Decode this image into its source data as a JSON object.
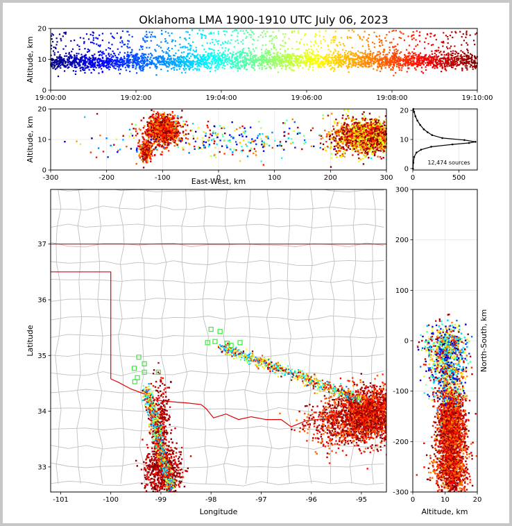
{
  "title": "Oklahoma LMA 1900-1910 UTC July 06, 2023",
  "chart_data": [
    {
      "id": "time_altitude",
      "type": "scatter",
      "xlabel": "",
      "ylabel": "Altitude, km",
      "x_ticks": [
        "19:00:00",
        "19:02:00",
        "19:04:00",
        "19:06:00",
        "19:08:00",
        "19:10:00"
      ],
      "x_range_minutes": [
        0,
        10
      ],
      "ylim": [
        0,
        20
      ],
      "y_ticks": [
        0,
        10,
        20
      ],
      "colormap": "jet, by time",
      "altitude_profile_km": [
        {
          "minute": 0.0,
          "center": 9.0,
          "spread": 2.2
        },
        {
          "minute": 1.0,
          "center": 9.0,
          "spread": 2.4
        },
        {
          "minute": 2.0,
          "center": 9.2,
          "spread": 2.6
        },
        {
          "minute": 4.0,
          "center": 9.6,
          "spread": 2.6
        },
        {
          "minute": 6.0,
          "center": 9.6,
          "spread": 2.4
        },
        {
          "minute": 8.0,
          "center": 9.4,
          "spread": 2.3
        },
        {
          "minute": 10.0,
          "center": 9.2,
          "spread": 2.3
        }
      ],
      "sources_per_minute_relative": [
        1.0,
        1.05,
        1.0,
        1.0,
        1.0,
        1.0,
        1.0,
        1.05,
        1.1,
        1.2
      ]
    },
    {
      "id": "east_west_altitude",
      "type": "scatter",
      "xlabel": "East-West, km",
      "ylabel": "Altitude, km",
      "xlim": [
        -300,
        300
      ],
      "x_ticks": [
        -300,
        -200,
        -100,
        0,
        100,
        200,
        300
      ],
      "ylim": [
        0,
        20
      ],
      "y_ticks": [
        0,
        10,
        20
      ],
      "clusters": [
        {
          "x": -100,
          "x_spread": 14,
          "z": 13,
          "z_spread": 4,
          "weight": 0.3
        },
        {
          "x": -130,
          "x_spread": 6,
          "z": 6,
          "z_spread": 3,
          "weight": 0.06
        },
        {
          "x": 275,
          "x_spread": 20,
          "z": 11,
          "z_spread": 4,
          "weight": 0.4
        },
        {
          "x": 235,
          "x_spread": 22,
          "z": 11,
          "z_spread": 5,
          "weight": 0.14
        },
        {
          "x": 0,
          "x_spread": 120,
          "z": 10,
          "z_spread": 5,
          "weight": 0.1
        }
      ]
    },
    {
      "id": "altitude_histogram",
      "type": "line",
      "xlim": [
        0,
        700
      ],
      "x_ticks": [
        0,
        500
      ],
      "ylim": [
        -0.5,
        20.5
      ],
      "y_ticks": [
        0,
        10,
        20
      ],
      "annotation": "12,474 sources",
      "profile": [
        {
          "alt": 0.0,
          "count": 2
        },
        {
          "alt": 2.0,
          "count": 6
        },
        {
          "alt": 4.0,
          "count": 15
        },
        {
          "alt": 5.5,
          "count": 40
        },
        {
          "alt": 6.5,
          "count": 90
        },
        {
          "alt": 7.5,
          "count": 200
        },
        {
          "alt": 8.3,
          "count": 430
        },
        {
          "alt": 8.8,
          "count": 610
        },
        {
          "alt": 9.2,
          "count": 680
        },
        {
          "alt": 9.8,
          "count": 560
        },
        {
          "alt": 10.5,
          "count": 320
        },
        {
          "alt": 11.5,
          "count": 210
        },
        {
          "alt": 12.5,
          "count": 160
        },
        {
          "alt": 13.5,
          "count": 120
        },
        {
          "alt": 15.0,
          "count": 80
        },
        {
          "alt": 16.5,
          "count": 50
        },
        {
          "alt": 18.0,
          "count": 28
        },
        {
          "alt": 19.5,
          "count": 14
        },
        {
          "alt": 20.5,
          "count": 6
        }
      ]
    },
    {
      "id": "plan_view",
      "type": "scatter",
      "xlabel": "Longitude",
      "ylabel": "Latitude",
      "xlim": [
        -101.2,
        -94.5
      ],
      "x_ticks": [
        -101,
        -100,
        -99,
        -98,
        -97,
        -96,
        -95
      ],
      "ylim": [
        32.55,
        37.98
      ],
      "y_ticks": [
        33,
        34,
        35,
        36,
        37
      ],
      "clusters": [
        {
          "lon": -94.85,
          "lon_spread": 0.3,
          "lat": 33.95,
          "lat_spread": 0.25,
          "weight": 0.45
        },
        {
          "lon": -95.55,
          "lon_spread": 0.3,
          "lat": 33.8,
          "lat_spread": 0.22,
          "weight": 0.1
        },
        {
          "lon": -98.95,
          "lon_spread": 0.18,
          "lat": 32.9,
          "lat_spread": 0.25,
          "weight": 0.15
        },
        {
          "lon": -99.0,
          "lon_spread": 0.1,
          "lat": 33.6,
          "lat_spread": 0.5,
          "weight": 0.1
        }
      ],
      "line_segments": [
        {
          "from": [
            -97.8,
            35.15
          ],
          "to": [
            -95.0,
            34.2
          ],
          "weight": 0.08
        },
        {
          "from": [
            -99.3,
            34.4
          ],
          "to": [
            -98.8,
            32.6
          ],
          "weight": 0.08
        }
      ],
      "station_markers": [
        [
          -98.0,
          35.47
        ],
        [
          -97.82,
          35.43
        ],
        [
          -97.42,
          35.23
        ],
        [
          -97.92,
          35.25
        ],
        [
          -98.07,
          35.23
        ],
        [
          -97.68,
          35.22
        ],
        [
          -97.6,
          35.18
        ],
        [
          -99.44,
          34.97
        ],
        [
          -99.33,
          34.85
        ],
        [
          -99.53,
          34.77
        ],
        [
          -99.47,
          34.6
        ],
        [
          -99.33,
          34.7
        ],
        [
          -99.05,
          34.7
        ],
        [
          -99.52,
          34.53
        ]
      ],
      "border_color": "#e00000",
      "county_line_color": "#c0c0c0"
    },
    {
      "id": "altitude_north_south",
      "type": "scatter",
      "xlabel": "Altitude, km",
      "ylabel": "North-South, km",
      "xlim": [
        0,
        20
      ],
      "x_ticks": [
        0,
        10,
        20
      ],
      "ylim": [
        -300,
        300
      ],
      "y_ticks": [
        -300,
        -200,
        -100,
        0,
        100,
        200,
        300
      ],
      "clusters": [
        {
          "z": 12,
          "z_spread": 3,
          "y": -170,
          "y_spread": 35,
          "weight": 0.45
        },
        {
          "z": 12,
          "z_spread": 4,
          "y": -260,
          "y_spread": 30,
          "weight": 0.25
        },
        {
          "z": 11,
          "z_spread": 4,
          "y": -60,
          "y_spread": 40,
          "weight": 0.2
        },
        {
          "z": 10,
          "z_spread": 5,
          "y": -10,
          "y_spread": 20,
          "weight": 0.1
        }
      ]
    }
  ]
}
